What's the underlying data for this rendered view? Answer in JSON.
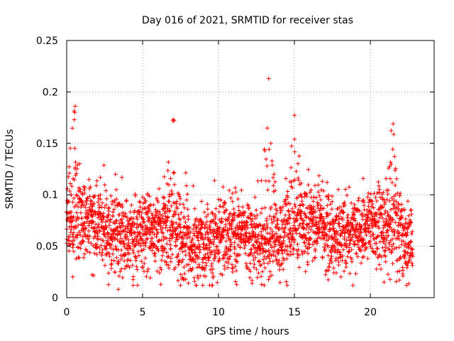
{
  "chart_data": {
    "type": "scatter",
    "title": "Day 016 of 2021, SRMTID for receiver stas",
    "xlabel": "GPS time / hours",
    "ylabel": "SRMTID / TECUs",
    "xlim": [
      0,
      24.2
    ],
    "ylim": [
      0,
      0.25
    ],
    "x_ticks": [
      0,
      5,
      10,
      15,
      20
    ],
    "x_tick_labels": [
      "0",
      "5",
      "10",
      "15",
      "20"
    ],
    "y_ticks": [
      0,
      0.05,
      0.1,
      0.15,
      0.2,
      0.25
    ],
    "y_tick_labels": [
      "0",
      "0.05",
      "0.1",
      "0.15",
      "0.2",
      "0.25"
    ],
    "grid": true,
    "marker": "+",
    "series": [
      {
        "name": "SRMTID",
        "color": "#ff0000",
        "x_range": [
          0,
          22.8
        ],
        "sample_interval_hours": 0.0083,
        "typical_range": [
          0.03,
          0.09
        ],
        "notable_peaks": [
          {
            "x": 0.5,
            "y": 0.173
          },
          {
            "x": 7.0,
            "y": 0.172
          },
          {
            "x": 13.3,
            "y": 0.213
          },
          {
            "x": 15.0,
            "y": 0.154
          },
          {
            "x": 21.5,
            "y": 0.169
          }
        ],
        "notable_lows": [
          {
            "x": 3.4,
            "y": 0.008
          },
          {
            "x": 6.2,
            "y": 0.013
          },
          {
            "x": 20.9,
            "y": 0.015
          }
        ]
      }
    ]
  }
}
